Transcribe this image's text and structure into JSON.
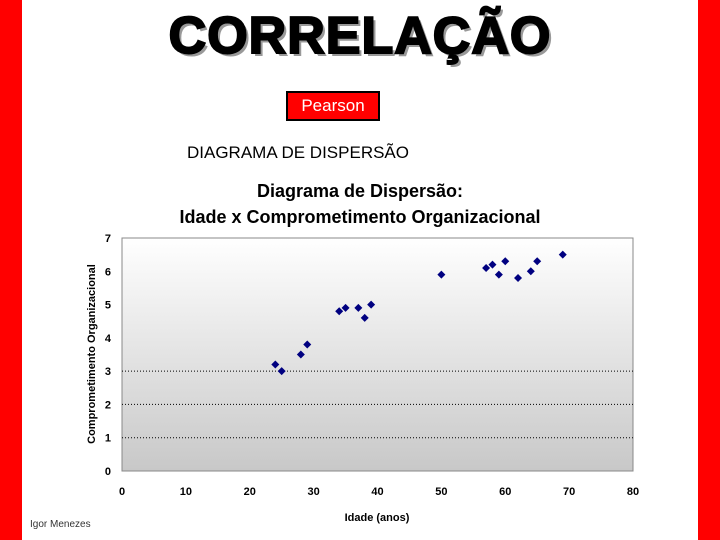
{
  "slide": {
    "title": "CORRELAÇÃO",
    "pearson_label": "Pearson",
    "subtitle": "DIAGRAMA DE DISPERSÃO",
    "author": "Igor Menezes",
    "accent_color": "#ff0000",
    "badge_color": "#ff0000"
  },
  "chart_data": {
    "type": "scatter",
    "title_lines": [
      "Diagrama de Dispersão:",
      "Idade x Comprometimento Organizacional"
    ],
    "xlabel": "Idade (anos)",
    "ylabel": "Comprometimento Organizacional",
    "xlim": [
      0,
      80
    ],
    "ylim": [
      0,
      7
    ],
    "xticks": [
      0,
      10,
      20,
      30,
      40,
      50,
      60,
      70,
      80
    ],
    "yticks": [
      0,
      1,
      2,
      3,
      4,
      5,
      6,
      7
    ],
    "grid": "horizontal dotted at 1, 2, 3",
    "legend": "none",
    "marker_color": "#000080",
    "points": [
      {
        "x": 24,
        "y": 3.2
      },
      {
        "x": 25,
        "y": 3.0
      },
      {
        "x": 28,
        "y": 3.5
      },
      {
        "x": 29,
        "y": 3.8
      },
      {
        "x": 34,
        "y": 4.8
      },
      {
        "x": 35,
        "y": 4.9
      },
      {
        "x": 37,
        "y": 4.9
      },
      {
        "x": 38,
        "y": 4.6
      },
      {
        "x": 39,
        "y": 5.0
      },
      {
        "x": 50,
        "y": 5.9
      },
      {
        "x": 57,
        "y": 6.1
      },
      {
        "x": 58,
        "y": 6.2
      },
      {
        "x": 59,
        "y": 5.9
      },
      {
        "x": 60,
        "y": 6.3
      },
      {
        "x": 62,
        "y": 5.8
      },
      {
        "x": 64,
        "y": 6.0
      },
      {
        "x": 65,
        "y": 6.3
      },
      {
        "x": 69,
        "y": 6.5
      }
    ]
  }
}
